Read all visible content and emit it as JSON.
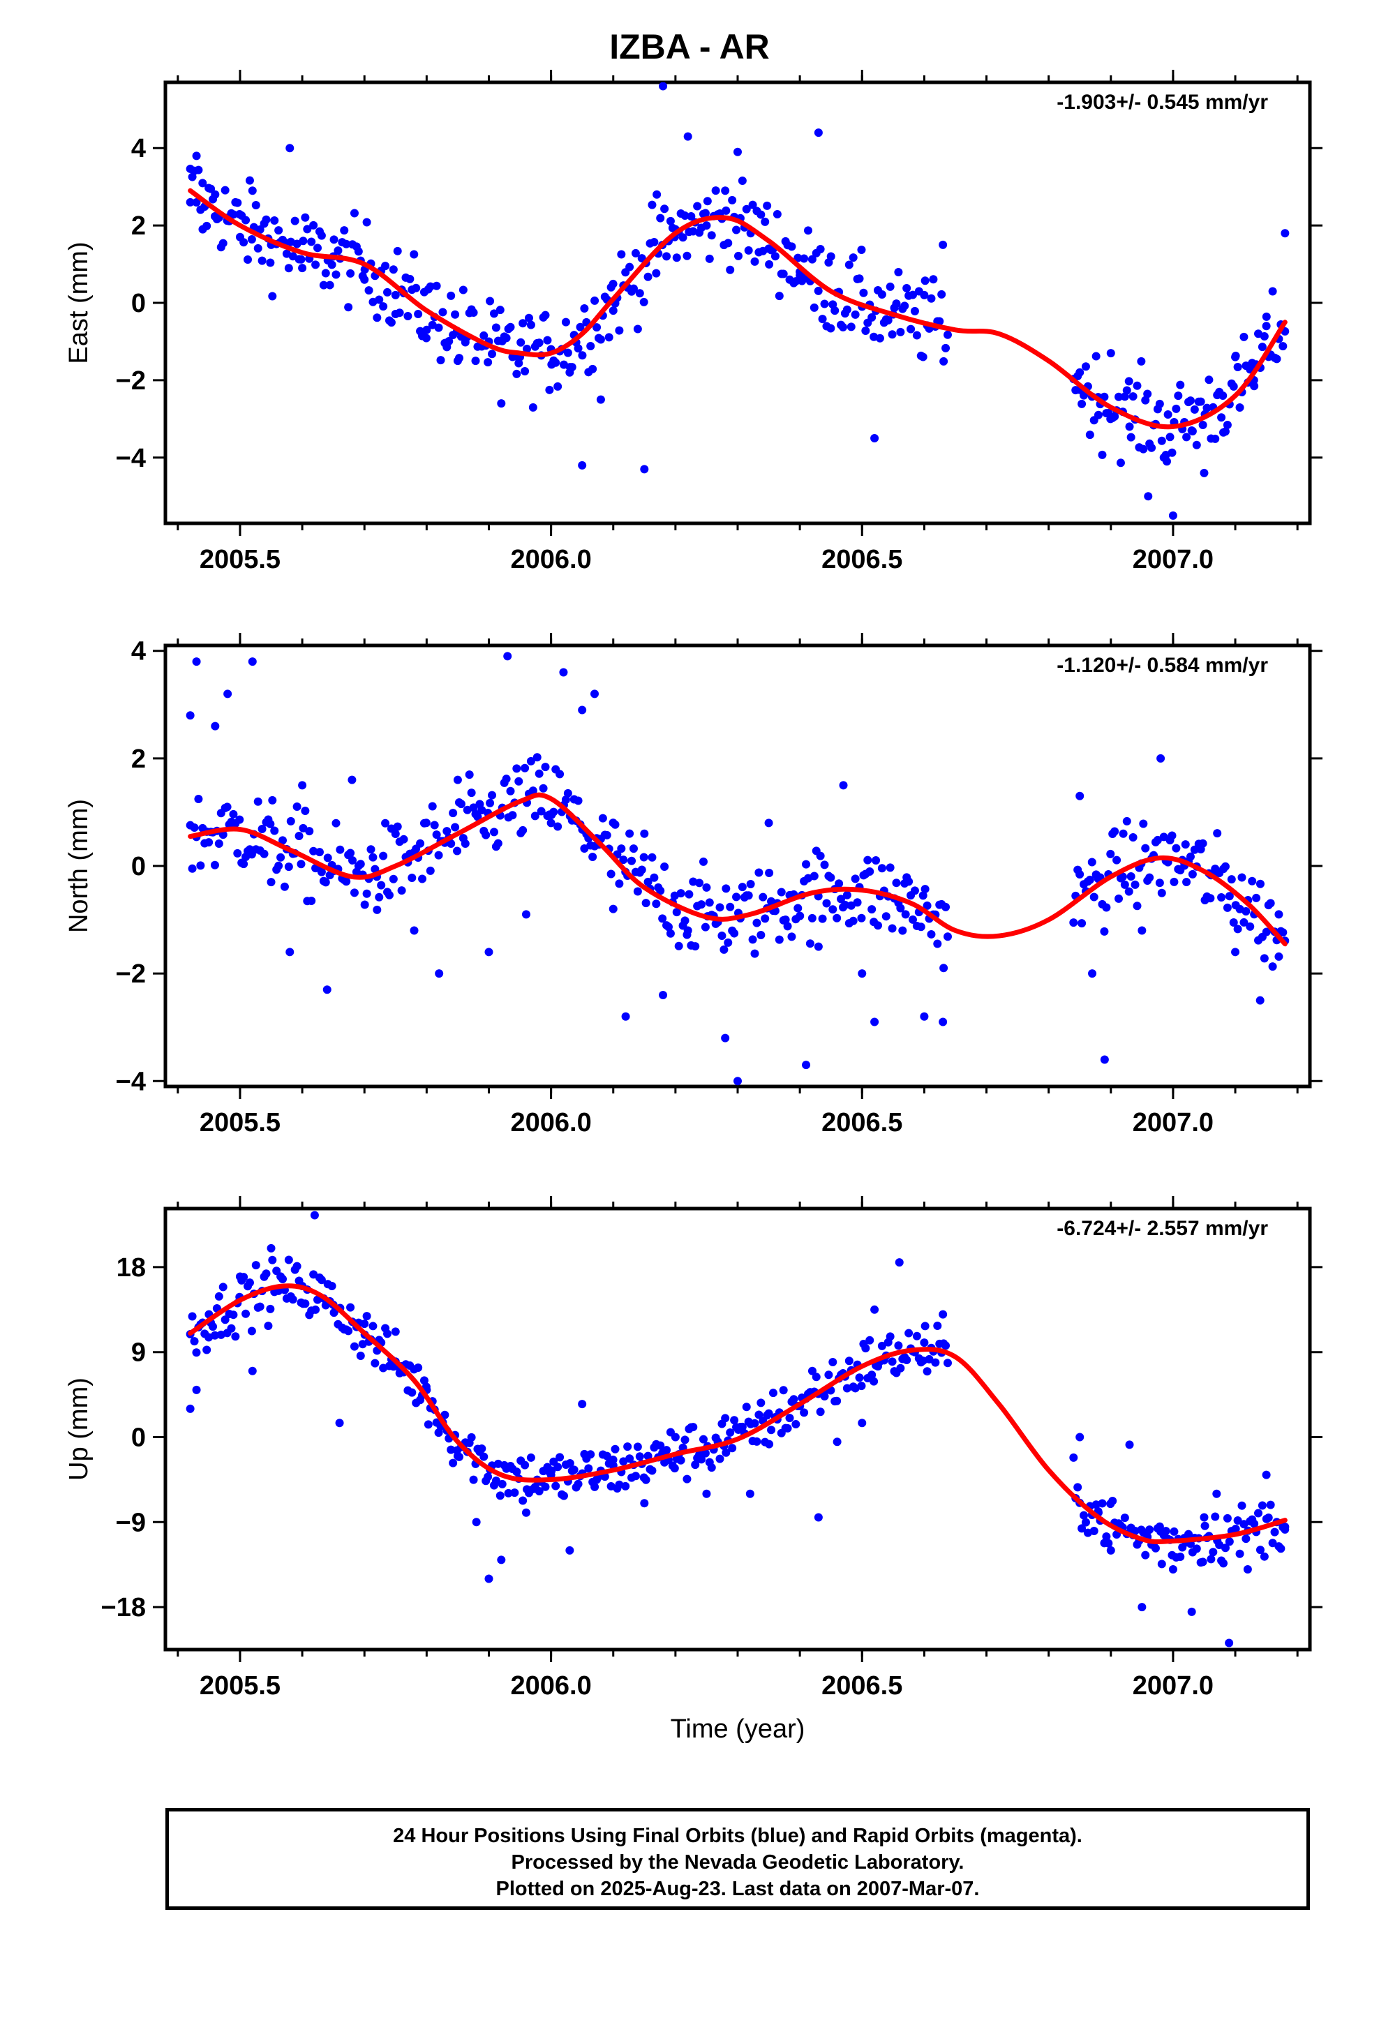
{
  "title": "IZBA - AR",
  "xlabel": "Time (year)",
  "footer": {
    "line1": "24 Hour Positions Using Final Orbits (blue) and Rapid Orbits (magenta).",
    "line2": "Processed by the Nevada Geodetic Laboratory.",
    "line3": "Plotted on 2025-Aug-23. Last data on 2007-Mar-07."
  },
  "colors": {
    "points": "#0000ff",
    "fit": "#ff0000",
    "axes": "#000000"
  },
  "chart_data": [
    {
      "type": "scatter",
      "ylabel": "East (mm)",
      "rate": "-1.903+/- 0.545 mm/yr",
      "xlim": [
        2005.38,
        2007.22
      ],
      "ylim": [
        -5.7,
        5.7
      ],
      "xticks": [
        2005.5,
        2006.0,
        2006.5,
        2007.0
      ],
      "xtick_labels": [
        "2005.5",
        "2006.0",
        "2006.5",
        "2007.0"
      ],
      "yticks": [
        -4,
        -2,
        0,
        2,
        4
      ],
      "ytick_labels": [
        "−4",
        "−2",
        "0",
        "2",
        "4"
      ],
      "segments": [
        [
          2005.42,
          2006.64
        ],
        [
          2006.84,
          2007.18
        ]
      ],
      "series": [
        {
          "kind": "points",
          "values": [
            [
              2005.42,
              2.6
            ],
            [
              2005.43,
              3.8
            ],
            [
              2005.44,
              1.9
            ],
            [
              2005.46,
              2.8
            ],
            [
              2005.48,
              2.2
            ],
            [
              2005.5,
              1.7
            ],
            [
              2005.52,
              2.9
            ],
            [
              2005.55,
              1.5
            ],
            [
              2005.58,
              4.0
            ],
            [
              2005.6,
              0.9
            ],
            [
              2005.65,
              1.2
            ],
            [
              2005.7,
              0.6
            ],
            [
              2005.75,
              0.2
            ],
            [
              2005.8,
              -0.7
            ],
            [
              2005.85,
              -1.5
            ],
            [
              2005.9,
              -1.0
            ],
            [
              2005.92,
              -2.6
            ],
            [
              2005.95,
              -1.4
            ],
            [
              2006.0,
              -1.2
            ],
            [
              2006.03,
              -1.8
            ],
            [
              2006.05,
              -4.2
            ],
            [
              2006.08,
              -2.5
            ],
            [
              2006.1,
              -0.2
            ],
            [
              2006.15,
              -4.3
            ],
            [
              2006.17,
              2.8
            ],
            [
              2006.18,
              5.6
            ],
            [
              2006.2,
              1.9
            ],
            [
              2006.22,
              4.3
            ],
            [
              2006.25,
              2.0
            ],
            [
              2006.28,
              2.9
            ],
            [
              2006.3,
              3.9
            ],
            [
              2006.35,
              1.4
            ],
            [
              2006.4,
              0.8
            ],
            [
              2006.43,
              4.4
            ],
            [
              2006.45,
              1.2
            ],
            [
              2006.5,
              -0.1
            ],
            [
              2006.52,
              -3.5
            ],
            [
              2006.55,
              -0.3
            ],
            [
              2006.6,
              0.2
            ],
            [
              2006.63,
              1.5
            ],
            [
              2006.85,
              -1.8
            ],
            [
              2006.88,
              -2.9
            ],
            [
              2006.9,
              -1.3
            ],
            [
              2006.93,
              -3.2
            ],
            [
              2006.96,
              -5.0
            ],
            [
              2006.99,
              -4.1
            ],
            [
              2007.0,
              -5.5
            ],
            [
              2007.03,
              -3.3
            ],
            [
              2007.05,
              -4.4
            ],
            [
              2007.08,
              -2.4
            ],
            [
              2007.1,
              -1.4
            ],
            [
              2007.13,
              -2.0
            ],
            [
              2007.15,
              -0.6
            ],
            [
              2007.18,
              1.8
            ]
          ]
        },
        {
          "kind": "fit",
          "values": [
            [
              2005.42,
              2.9
            ],
            [
              2005.5,
              2.0
            ],
            [
              2005.6,
              1.3
            ],
            [
              2005.7,
              1.0
            ],
            [
              2005.8,
              -0.2
            ],
            [
              2005.9,
              -1.1
            ],
            [
              2005.95,
              -1.3
            ],
            [
              2006.0,
              -1.3
            ],
            [
              2006.05,
              -0.8
            ],
            [
              2006.1,
              0.1
            ],
            [
              2006.2,
              1.8
            ],
            [
              2006.28,
              2.2
            ],
            [
              2006.35,
              1.6
            ],
            [
              2006.45,
              0.3
            ],
            [
              2006.55,
              -0.3
            ],
            [
              2006.65,
              -0.7
            ],
            [
              2006.72,
              -0.8
            ],
            [
              2006.8,
              -1.5
            ],
            [
              2006.9,
              -2.7
            ],
            [
              2007.0,
              -3.2
            ],
            [
              2007.1,
              -2.4
            ],
            [
              2007.18,
              -0.5
            ]
          ]
        }
      ]
    },
    {
      "type": "scatter",
      "ylabel": "North (mm)",
      "rate": "-1.120+/- 0.584 mm/yr",
      "xlim": [
        2005.38,
        2007.22
      ],
      "ylim": [
        -4.1,
        4.1
      ],
      "xticks": [
        2005.5,
        2006.0,
        2006.5,
        2007.0
      ],
      "xtick_labels": [
        "2005.5",
        "2006.0",
        "2006.5",
        "2007.0"
      ],
      "yticks": [
        -4,
        -2,
        0,
        2,
        4
      ],
      "ytick_labels": [
        "−4",
        "−2",
        "0",
        "2",
        "4"
      ],
      "segments": [
        [
          2005.42,
          2006.64
        ],
        [
          2006.84,
          2007.18
        ]
      ],
      "series": [
        {
          "kind": "points",
          "values": [
            [
              2005.42,
              2.8
            ],
            [
              2005.43,
              3.8
            ],
            [
              2005.46,
              2.6
            ],
            [
              2005.48,
              3.2
            ],
            [
              2005.52,
              3.8
            ],
            [
              2005.55,
              -0.3
            ],
            [
              2005.58,
              -1.6
            ],
            [
              2005.6,
              1.5
            ],
            [
              2005.64,
              -2.3
            ],
            [
              2005.68,
              1.6
            ],
            [
              2005.72,
              -0.2
            ],
            [
              2005.78,
              -1.2
            ],
            [
              2005.82,
              -2.0
            ],
            [
              2005.85,
              1.6
            ],
            [
              2005.9,
              -1.6
            ],
            [
              2005.93,
              3.9
            ],
            [
              2005.96,
              -0.9
            ],
            [
              2006.0,
              0.8
            ],
            [
              2006.02,
              3.6
            ],
            [
              2006.05,
              2.9
            ],
            [
              2006.07,
              3.2
            ],
            [
              2006.1,
              -0.8
            ],
            [
              2006.12,
              -2.8
            ],
            [
              2006.15,
              0.6
            ],
            [
              2006.18,
              -2.4
            ],
            [
              2006.22,
              -1.2
            ],
            [
              2006.25,
              -0.4
            ],
            [
              2006.28,
              -3.2
            ],
            [
              2006.3,
              -4.0
            ],
            [
              2006.35,
              0.8
            ],
            [
              2006.41,
              -3.7
            ],
            [
              2006.43,
              -1.5
            ],
            [
              2006.47,
              1.5
            ],
            [
              2006.5,
              -2.0
            ],
            [
              2006.52,
              -2.9
            ],
            [
              2006.57,
              -0.9
            ],
            [
              2006.6,
              -2.8
            ],
            [
              2006.63,
              -2.9
            ],
            [
              2006.85,
              1.3
            ],
            [
              2006.87,
              -2.0
            ],
            [
              2006.89,
              -3.6
            ],
            [
              2006.92,
              0.6
            ],
            [
              2006.95,
              -1.2
            ],
            [
              2006.98,
              2.0
            ],
            [
              2007.02,
              0.4
            ],
            [
              2007.06,
              -0.6
            ],
            [
              2007.1,
              -1.6
            ],
            [
              2007.14,
              -2.5
            ],
            [
              2007.17,
              -0.9
            ]
          ]
        },
        {
          "kind": "fit",
          "values": [
            [
              2005.42,
              0.55
            ],
            [
              2005.5,
              0.68
            ],
            [
              2005.58,
              0.3
            ],
            [
              2005.68,
              -0.2
            ],
            [
              2005.75,
              0.0
            ],
            [
              2005.85,
              0.6
            ],
            [
              2005.95,
              1.2
            ],
            [
              2006.0,
              1.25
            ],
            [
              2006.08,
              0.4
            ],
            [
              2006.15,
              -0.4
            ],
            [
              2006.25,
              -0.95
            ],
            [
              2006.32,
              -0.9
            ],
            [
              2006.42,
              -0.5
            ],
            [
              2006.5,
              -0.45
            ],
            [
              2006.58,
              -0.7
            ],
            [
              2006.65,
              -1.2
            ],
            [
              2006.72,
              -1.3
            ],
            [
              2006.8,
              -1.0
            ],
            [
              2006.9,
              -0.2
            ],
            [
              2006.98,
              0.15
            ],
            [
              2007.05,
              -0.1
            ],
            [
              2007.12,
              -0.7
            ],
            [
              2007.18,
              -1.45
            ]
          ]
        }
      ]
    },
    {
      "type": "scatter",
      "ylabel": "Up (mm)",
      "rate": "-6.724+/- 2.557 mm/yr",
      "xlim": [
        2005.38,
        2007.22
      ],
      "ylim": [
        -22.5,
        24.2
      ],
      "xticks": [
        2005.5,
        2006.0,
        2006.5,
        2007.0
      ],
      "xtick_labels": [
        "2005.5",
        "2006.0",
        "2006.5",
        "2007.0"
      ],
      "yticks": [
        -18,
        -9,
        0,
        9,
        18
      ],
      "ytick_labels": [
        "−18",
        "−9",
        "0",
        "9",
        "18"
      ],
      "segments": [
        [
          2005.42,
          2006.64
        ],
        [
          2006.84,
          2007.18
        ]
      ],
      "series": [
        {
          "kind": "points",
          "values": [
            [
              2005.42,
              3.0
            ],
            [
              2005.43,
              5.0
            ],
            [
              2005.45,
              13.0
            ],
            [
              2005.5,
              17.0
            ],
            [
              2005.52,
              7.0
            ],
            [
              2005.55,
              20.0
            ],
            [
              2005.6,
              16.0
            ],
            [
              2005.62,
              23.5
            ],
            [
              2005.65,
              14.0
            ],
            [
              2005.66,
              1.5
            ],
            [
              2005.7,
              12.0
            ],
            [
              2005.75,
              8.0
            ],
            [
              2005.8,
              5.0
            ],
            [
              2005.85,
              -2.0
            ],
            [
              2005.88,
              -9.0
            ],
            [
              2005.9,
              -15.0
            ],
            [
              2005.92,
              -13.0
            ],
            [
              2005.96,
              -8.0
            ],
            [
              2006.0,
              -4.0
            ],
            [
              2006.03,
              -12.0
            ],
            [
              2006.05,
              3.5
            ],
            [
              2006.1,
              -3.0
            ],
            [
              2006.15,
              -7.0
            ],
            [
              2006.2,
              0.0
            ],
            [
              2006.25,
              -6.0
            ],
            [
              2006.28,
              2.0
            ],
            [
              2006.32,
              -6.0
            ],
            [
              2006.35,
              2.5
            ],
            [
              2006.42,
              7.0
            ],
            [
              2006.43,
              -8.5
            ],
            [
              2006.46,
              -0.5
            ],
            [
              2006.5,
              1.5
            ],
            [
              2006.52,
              13.5
            ],
            [
              2006.56,
              18.5
            ],
            [
              2006.6,
              10.0
            ],
            [
              2006.63,
              13.0
            ],
            [
              2006.85,
              0.0
            ],
            [
              2006.88,
              -8.0
            ],
            [
              2006.9,
              -12.0
            ],
            [
              2006.93,
              -0.8
            ],
            [
              2006.95,
              -18.0
            ],
            [
              2006.98,
              -10.0
            ],
            [
              2007.0,
              -14.0
            ],
            [
              2007.03,
              -18.5
            ],
            [
              2007.05,
              -8.5
            ],
            [
              2007.07,
              -6.0
            ],
            [
              2007.09,
              -21.8
            ],
            [
              2007.12,
              -14.0
            ],
            [
              2007.15,
              -4.0
            ],
            [
              2007.18,
              -9.5
            ]
          ]
        },
        {
          "kind": "fit",
          "values": [
            [
              2005.42,
              11.0
            ],
            [
              2005.5,
              14.5
            ],
            [
              2005.57,
              16.0
            ],
            [
              2005.63,
              15.0
            ],
            [
              2005.7,
              11.0
            ],
            [
              2005.78,
              6.0
            ],
            [
              2005.85,
              -0.5
            ],
            [
              2005.92,
              -4.0
            ],
            [
              2006.0,
              -4.5
            ],
            [
              2006.1,
              -3.5
            ],
            [
              2006.2,
              -1.8
            ],
            [
              2006.3,
              -0.2
            ],
            [
              2006.4,
              3.5
            ],
            [
              2006.5,
              7.5
            ],
            [
              2006.58,
              9.2
            ],
            [
              2006.65,
              8.5
            ],
            [
              2006.72,
              3.5
            ],
            [
              2006.8,
              -3.5
            ],
            [
              2006.88,
              -8.5
            ],
            [
              2006.95,
              -10.8
            ],
            [
              2007.0,
              -11.0
            ],
            [
              2007.1,
              -10.3
            ],
            [
              2007.18,
              -8.8
            ]
          ]
        }
      ]
    }
  ]
}
